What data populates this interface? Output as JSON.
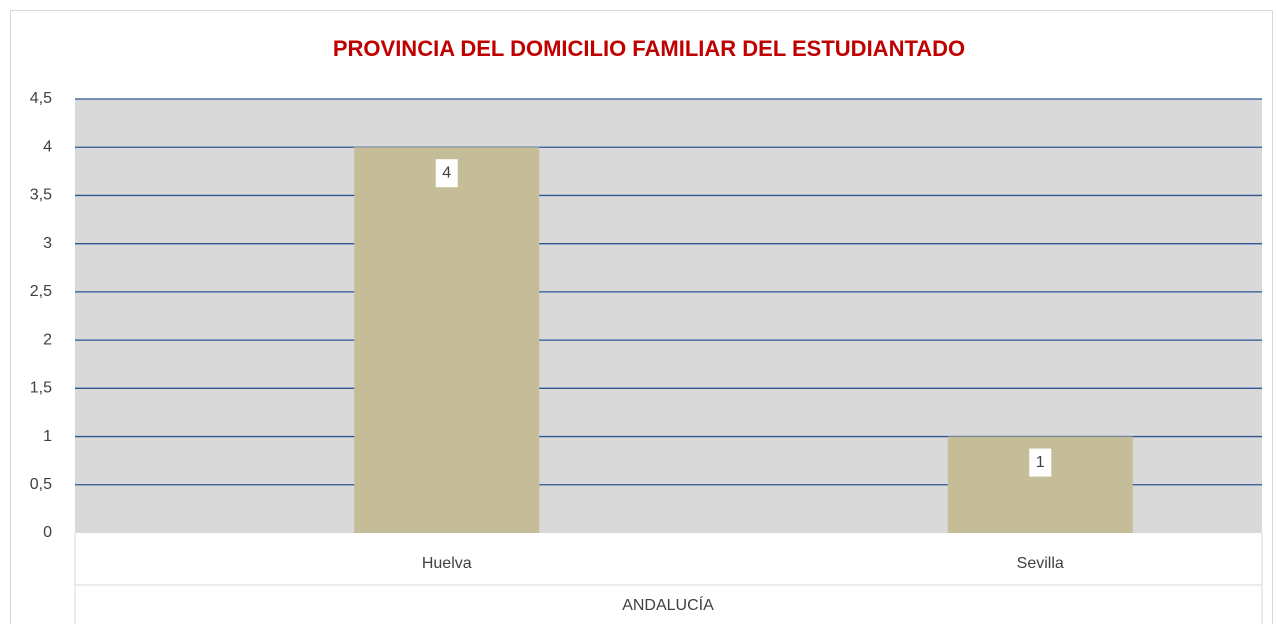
{
  "chart_data": {
    "type": "bar",
    "title": "PROVINCIA DEL DOMICILIO FAMILIAR DEL ESTUDIANTADO",
    "categories": [
      "Huelva",
      "Sevilla"
    ],
    "category_group": "ANDALUCÍA",
    "values": [
      4,
      1
    ],
    "color": "#c4bd97",
    "ylim": [
      0,
      4.5
    ],
    "yticks": [
      0,
      {
        "value": 0.5,
        "label": "0,5"
      },
      1,
      {
        "value": 1.5,
        "label": "1,5"
      },
      2,
      {
        "value": 2.5,
        "label": "2,5"
      },
      3,
      {
        "value": 3.5,
        "label": "3,5"
      },
      4,
      {
        "value": 4.5,
        "label": "4,5"
      }
    ],
    "grid": true
  }
}
